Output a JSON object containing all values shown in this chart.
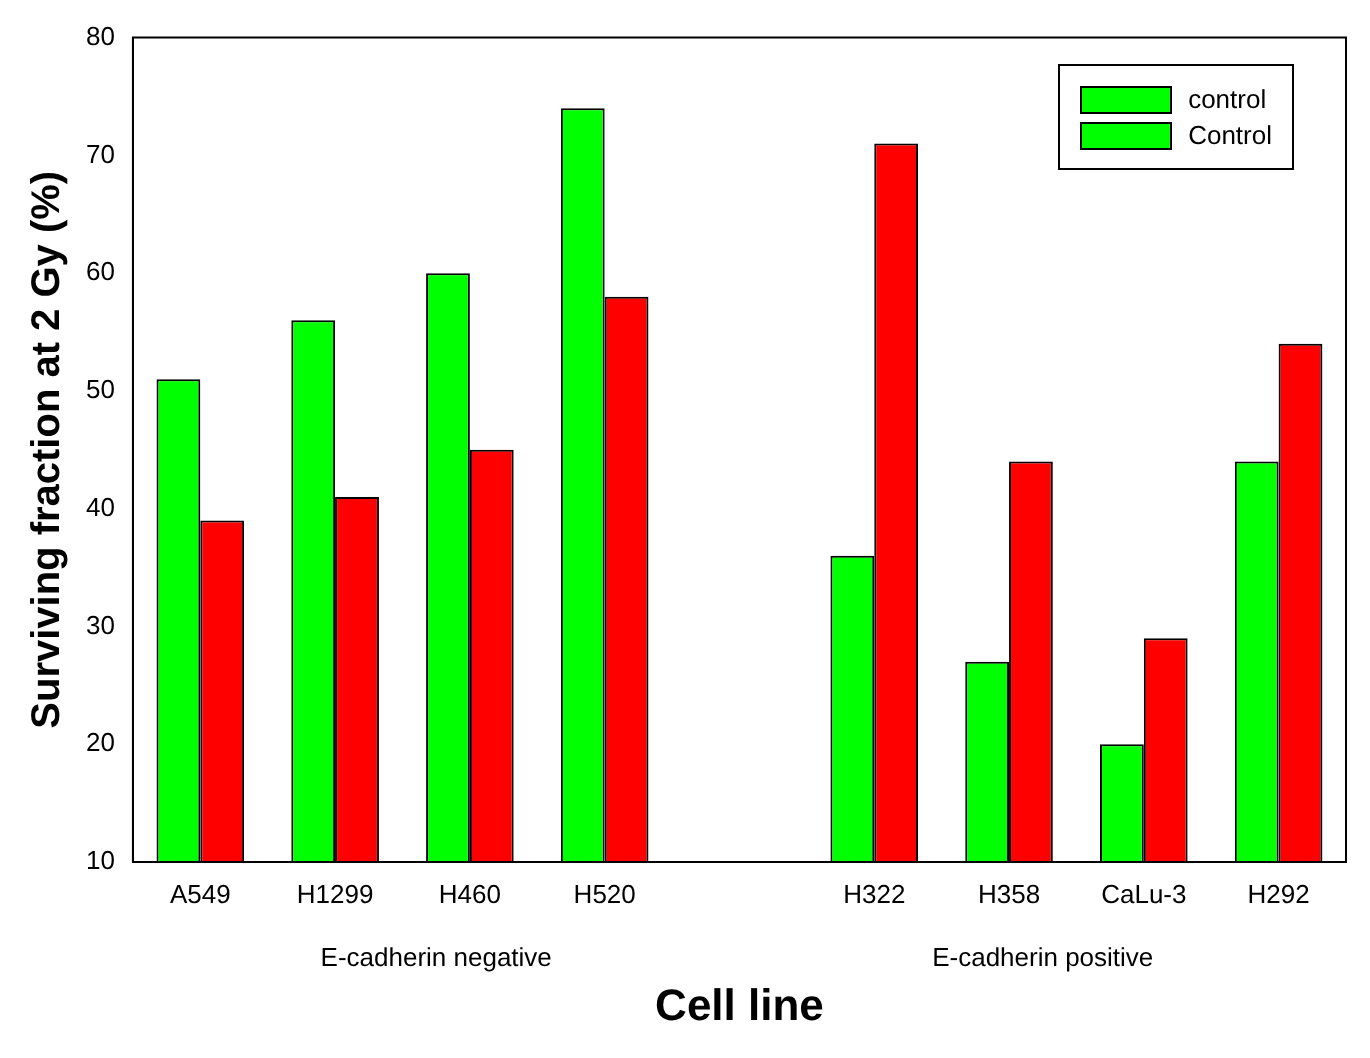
{
  "chart_data": {
    "type": "bar",
    "xlabel": "Cell line",
    "ylabel": "Surviving fraction at 2 Gy (%)",
    "categories": [
      "A549",
      "H1299",
      "H460",
      "H520",
      null,
      "H322",
      "H358",
      "CaLu-3",
      "H292"
    ],
    "series": [
      {
        "name": "control",
        "color": "#00ff00",
        "values": [
          51,
          56,
          60,
          74,
          null,
          null,
          null,
          null,
          null
        ]
      },
      {
        "name": "Control",
        "color": "#00ff00",
        "values": [
          null,
          null,
          null,
          null,
          null,
          36,
          27,
          20,
          44
        ]
      },
      {
        "color": "#ff0000",
        "values": [
          39,
          41,
          45,
          58,
          null,
          null,
          null,
          null,
          null
        ]
      },
      {
        "color": "#ff0000",
        "values": [
          null,
          null,
          null,
          null,
          null,
          71,
          44,
          29,
          54
        ]
      }
    ],
    "ylim": [
      10,
      80
    ],
    "yticks": [
      10,
      20,
      30,
      40,
      50,
      60,
      70,
      80
    ],
    "grid": false,
    "legend": "top right",
    "annotations": [
      "E-cadherin negative",
      "E-cadherin positive"
    ]
  }
}
